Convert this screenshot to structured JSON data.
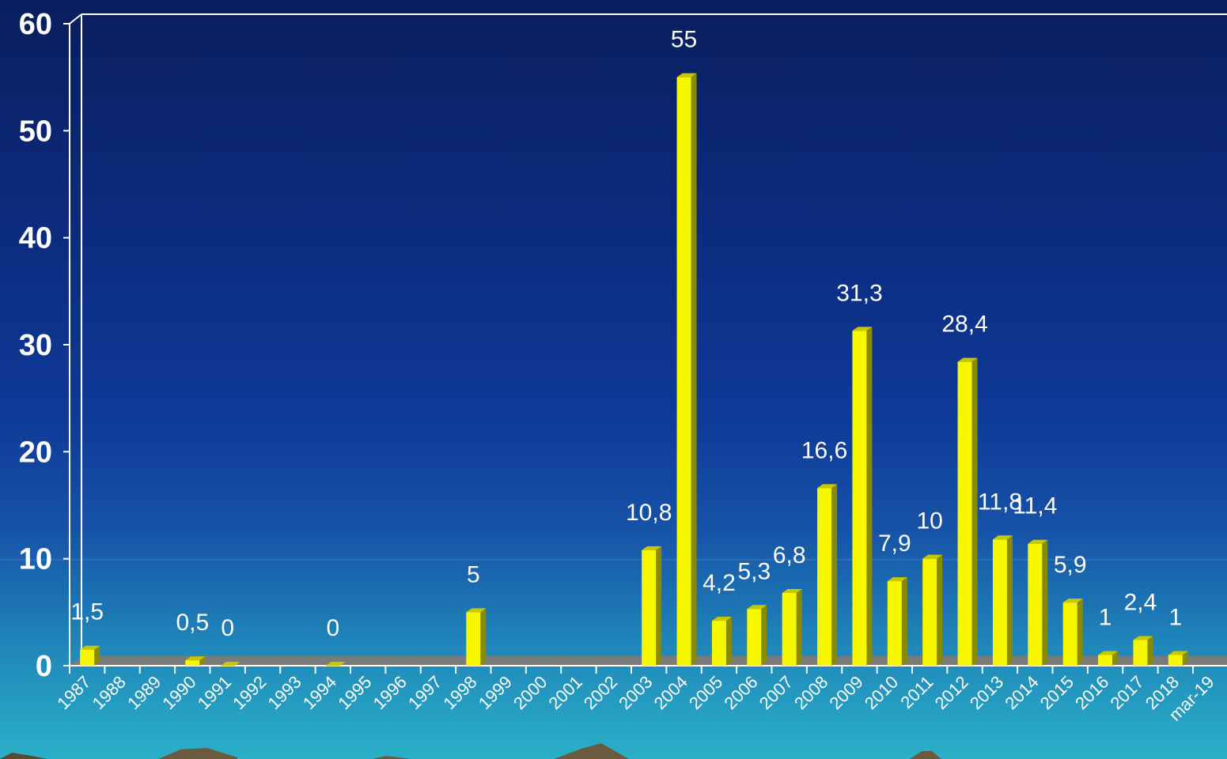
{
  "chart_data": {
    "type": "bar",
    "categories": [
      "1987",
      "1988",
      "1989",
      "1990",
      "1991",
      "1992",
      "1993",
      "1994",
      "1995",
      "1996",
      "1997",
      "1998",
      "1999",
      "2000",
      "2001",
      "2002",
      "2003",
      "2004",
      "2005",
      "2006",
      "2007",
      "2008",
      "2009",
      "2010",
      "2011",
      "2012",
      "2013",
      "2014",
      "2015",
      "2016",
      "2017",
      "2018",
      "mar-19"
    ],
    "values": [
      1.5,
      null,
      null,
      0.5,
      0,
      null,
      null,
      0,
      null,
      null,
      null,
      5,
      null,
      null,
      null,
      null,
      10.8,
      55,
      4.2,
      5.3,
      6.8,
      16.6,
      31.3,
      7.9,
      10,
      28.4,
      11.8,
      11.4,
      5.9,
      1,
      2.4,
      1,
      null
    ],
    "data_labels": [
      "1,5",
      "",
      "",
      "0,5",
      "0",
      "",
      "",
      "0",
      "",
      "",
      "",
      "5",
      "",
      "",
      "",
      "",
      "10,8",
      "55",
      "4,2",
      "5,3",
      "6,8",
      "16,6",
      "31,3",
      "7,9",
      "10",
      "28,4",
      "11,8",
      "11,4",
      "5,9",
      "1",
      "2,4",
      "1",
      ""
    ],
    "y_ticks": [
      "0",
      "10",
      "20",
      "30",
      "40",
      "50",
      "60"
    ],
    "ylim": [
      0,
      60
    ],
    "title": "",
    "xlabel": "",
    "ylabel": "",
    "grid": false,
    "legend": "none",
    "colors": {
      "bar_front": "#f7f700",
      "bar_side": "#8a8a00",
      "bar_top": "#c8c800",
      "axis_line": "#ffffff",
      "floor": "#7a7a7a",
      "text": "#ffffff"
    }
  }
}
